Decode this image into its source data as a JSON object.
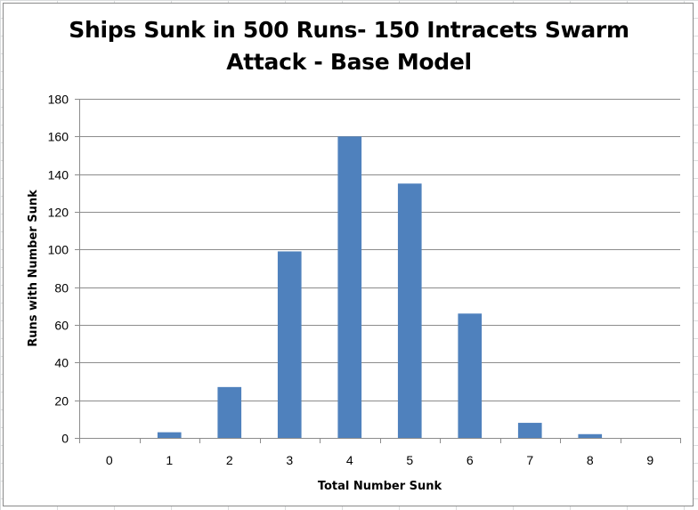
{
  "chart_data": {
    "type": "bar",
    "title_lines": [
      "Ships Sunk in 500 Runs- 150 Intracets Swarm",
      "Attack - Base Model"
    ],
    "xlabel": "Total Number Sunk",
    "ylabel": "Runs with Number Sunk",
    "categories": [
      "0",
      "1",
      "2",
      "3",
      "4",
      "5",
      "6",
      "7",
      "8",
      "9"
    ],
    "values": [
      0,
      3,
      27,
      99,
      160,
      135,
      66,
      8,
      2,
      0
    ],
    "ylim": [
      0,
      180
    ],
    "yticks": [
      0,
      20,
      40,
      60,
      80,
      100,
      120,
      140,
      160,
      180
    ],
    "grid": true,
    "legend": "none",
    "bar_color": "#4f81bd"
  }
}
